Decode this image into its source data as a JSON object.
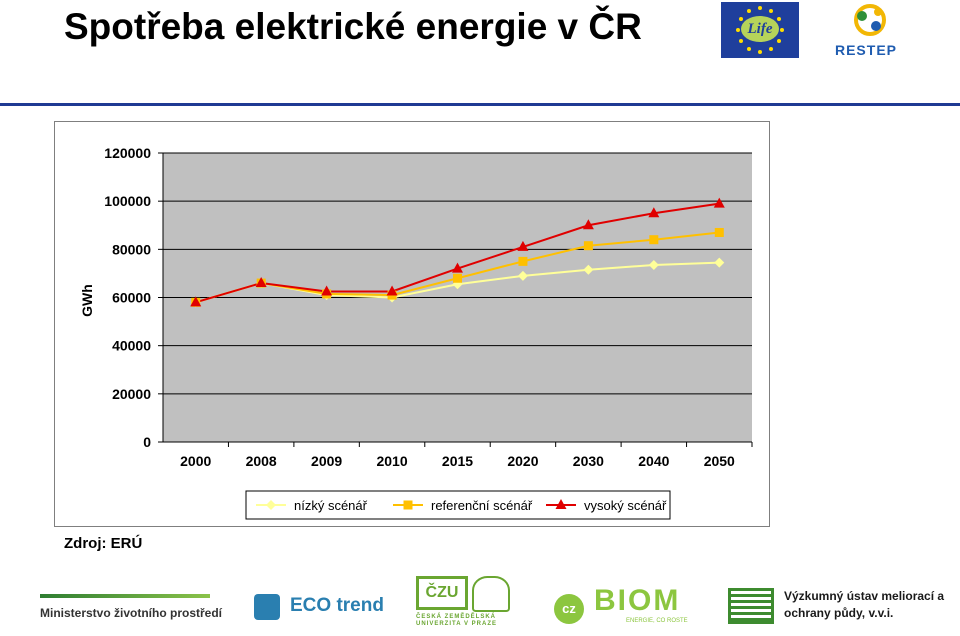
{
  "slide": {
    "title": "Spotřeba elektrické energie v ČR",
    "source": "Zdroj: ERÚ"
  },
  "logos": {
    "life": "Life",
    "restep": "RESTEP",
    "ministerstvo": "Ministerstvo životního prostředí",
    "ecotrend": "ECO trend",
    "czu_mark": "ČZU",
    "czu_sub": "ČESKÁ ZEMĚDĚLSKÁ UNIVERZITA V PRAZE",
    "biom_cz": "cz",
    "biom_word": "BIOM",
    "biom_tagline": "ENERGIE, CO ROSTE",
    "vumop": "Výzkumný ústav meliorací a ochrany půdy, v.v.i."
  },
  "colors": {
    "title_rule": "#1f3a93",
    "plot_bg": "#c0c0c0",
    "low": "#ffff99",
    "reference": "#ffc000",
    "high": "#e00000"
  },
  "chart_data": {
    "type": "line",
    "title": "",
    "xlabel": "",
    "ylabel": "GWh",
    "categories": [
      "2000",
      "2008",
      "2009",
      "2010",
      "2015",
      "2020",
      "2030",
      "2040",
      "2050"
    ],
    "ylim": [
      0,
      120000
    ],
    "yticks": [
      "0",
      "20000",
      "40000",
      "60000",
      "80000",
      "100000",
      "120000"
    ],
    "grid": true,
    "legend_position": "bottom",
    "series": [
      {
        "name": "nízký scénář",
        "marker": "diamond",
        "values": [
          58000,
          66000,
          61000,
          60000,
          65500,
          69000,
          71500,
          73500,
          74500
        ]
      },
      {
        "name": "referenční scénář",
        "marker": "square",
        "values": [
          58000,
          66000,
          61500,
          61000,
          68000,
          75000,
          81500,
          84000,
          87000
        ]
      },
      {
        "name": "vysoký scénář",
        "marker": "triangle",
        "values": [
          58000,
          66000,
          62500,
          62500,
          72000,
          81000,
          90000,
          95000,
          99000
        ]
      }
    ]
  }
}
